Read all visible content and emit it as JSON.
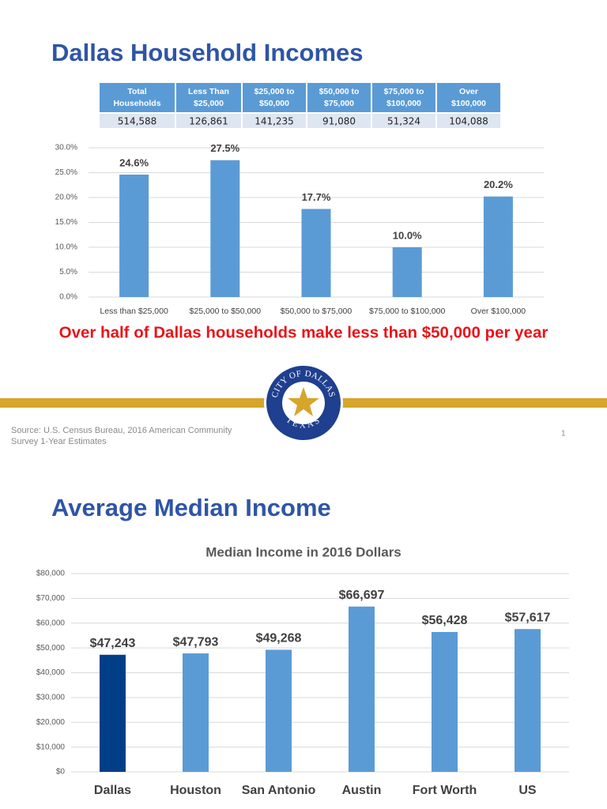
{
  "slide1": {
    "title": "Dallas Household Incomes",
    "table": {
      "header": [
        "Total Households",
        "Less Than $25,000",
        "$25,000 to $50,000",
        "$50,000 to $75,000",
        "$75,000 to $100,000",
        "Over $100,000"
      ],
      "rows": [
        [
          "514,588",
          "126,861",
          "141,235",
          "91,080",
          "51,324",
          "104,088"
        ]
      ]
    },
    "callout": "Over half of Dallas households make less than $50,000 per year",
    "seal": {
      "top": "CITY OF DALLAS",
      "bottom": "TEXAS"
    },
    "source": [
      "Source: U.S. Census Bureau, 2016 American Community",
      "Survey 1-Year Estimates"
    ],
    "page_number": "1"
  },
  "slide2": {
    "title": "Average Median Income"
  },
  "chart_data": [
    {
      "type": "bar",
      "categories": [
        "Less than $25,000",
        "$25,000 to $50,000",
        "$50,000 to $75,000",
        "$75,000 to $100,000",
        "Over $100,000"
      ],
      "values": [
        24.6,
        27.5,
        17.7,
        10.0,
        20.2
      ],
      "value_labels": [
        "24.6%",
        "27.5%",
        "17.7%",
        "10.0%",
        "20.2%"
      ],
      "colors": [
        "#5b9bd5",
        "#5b9bd5",
        "#5b9bd5",
        "#5b9bd5",
        "#5b9bd5"
      ],
      "ylim": [
        0,
        30
      ],
      "yticks": [
        {
          "value": 0,
          "label": "0.0%"
        },
        {
          "value": 5,
          "label": "5.0%"
        },
        {
          "value": 10,
          "label": "10.0%"
        },
        {
          "value": 15,
          "label": "15.0%"
        },
        {
          "value": 20,
          "label": "20.0%"
        },
        {
          "value": 25,
          "label": "25.0%"
        },
        {
          "value": 30,
          "label": "30.0%"
        }
      ],
      "grid": true
    },
    {
      "type": "bar",
      "title": "Median Income in 2016 Dollars",
      "categories": [
        "Dallas",
        "Houston",
        "San Antonio",
        "Austin",
        "Fort Worth",
        "US"
      ],
      "values": [
        47243,
        47793,
        49268,
        66697,
        56428,
        57617
      ],
      "value_labels": [
        "$47,243",
        "$47,793",
        "$49,268",
        "$66,697",
        "$56,428",
        "$57,617"
      ],
      "colors": [
        "#003f87",
        "#5b9bd5",
        "#5b9bd5",
        "#5b9bd5",
        "#5b9bd5",
        "#5b9bd5"
      ],
      "ylim": [
        0,
        80000
      ],
      "yticks": [
        {
          "value": 0,
          "label": "$0"
        },
        {
          "value": 10000,
          "label": "$10,000"
        },
        {
          "value": 20000,
          "label": "$20,000"
        },
        {
          "value": 30000,
          "label": "$30,000"
        },
        {
          "value": 40000,
          "label": "$40,000"
        },
        {
          "value": 50000,
          "label": "$50,000"
        },
        {
          "value": 60000,
          "label": "$60,000"
        },
        {
          "value": 70000,
          "label": "$70,000"
        },
        {
          "value": 80000,
          "label": "$80,000"
        }
      ],
      "grid": true
    }
  ]
}
